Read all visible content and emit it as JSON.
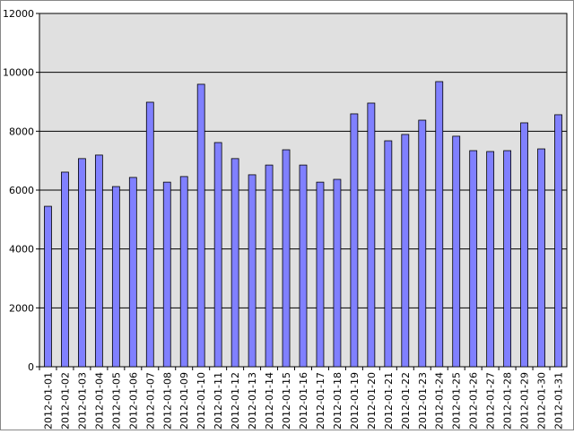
{
  "chart_data": {
    "type": "bar",
    "categories": [
      "2012-01-01",
      "2012-01-02",
      "2012-01-03",
      "2012-01-04",
      "2012-01-05",
      "2012-01-06",
      "2012-01-07",
      "2012-01-08",
      "2012-01-09",
      "2012-01-10",
      "2012-01-11",
      "2012-01-12",
      "2012-01-13",
      "2012-01-14",
      "2012-01-15",
      "2012-01-16",
      "2012-01-17",
      "2012-01-18",
      "2012-01-19",
      "2012-01-20",
      "2012-01-21",
      "2012-01-22",
      "2012-01-23",
      "2012-01-24",
      "2012-01-25",
      "2012-01-26",
      "2012-01-27",
      "2012-01-28",
      "2012-01-29",
      "2012-01-30",
      "2012-01-31"
    ],
    "values": [
      5450,
      6610,
      7070,
      7190,
      6120,
      6430,
      8985,
      6270,
      6460,
      9595,
      7615,
      7070,
      6520,
      6850,
      7370,
      6850,
      6270,
      6365,
      8590,
      8955,
      7675,
      7890,
      8375,
      9685,
      7830,
      7340,
      7310,
      7340,
      8285,
      7400,
      8560
    ],
    "color": "#8080ff",
    "ylim": [
      0,
      12000
    ],
    "yticks": [
      0,
      2000,
      4000,
      6000,
      8000,
      10000,
      12000
    ],
    "grid": true
  }
}
